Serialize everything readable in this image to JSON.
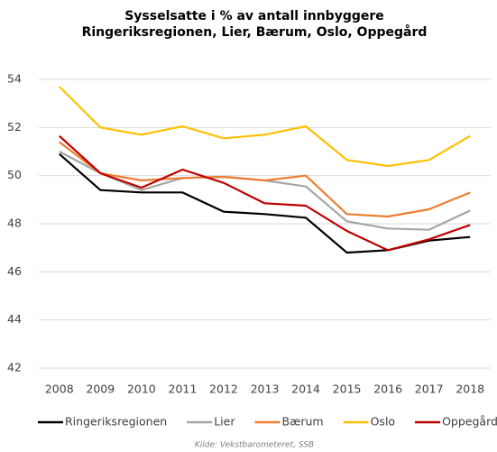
{
  "chart_data": {
    "type": "line",
    "title": "Sysselsatte i % av antall innbyggere",
    "subtitle": "Ringeriksregionen, Lier, Bærum, Oslo, Oppegård",
    "source": "Kilde: Vekstbarometeret, SSB",
    "categories": [
      "2008",
      "2009",
      "2010",
      "2011",
      "2012",
      "2013",
      "2014",
      "2015",
      "2016",
      "2017",
      "2018"
    ],
    "series": [
      {
        "name": "Ringeriksregionen",
        "color": "#000000",
        "values": [
          50.9,
          49.4,
          49.3,
          49.3,
          48.5,
          48.4,
          48.25,
          46.8,
          46.9,
          47.3,
          47.45
        ]
      },
      {
        "name": "Lier",
        "color": "#a5a5a5",
        "values": [
          51.0,
          50.1,
          49.4,
          49.9,
          49.95,
          49.8,
          49.55,
          48.1,
          47.8,
          47.75,
          48.55
        ]
      },
      {
        "name": "Bærum",
        "color": "#ed7d31",
        "values": [
          51.4,
          50.1,
          49.8,
          49.9,
          49.95,
          49.8,
          50.0,
          48.4,
          48.3,
          48.6,
          49.3
        ]
      },
      {
        "name": "Oslo",
        "color": "#ffc000",
        "values": [
          53.7,
          52.0,
          51.7,
          52.05,
          51.55,
          51.7,
          52.05,
          50.65,
          50.4,
          50.65,
          51.65
        ]
      },
      {
        "name": "Oppegård",
        "color": "#c00000",
        "values": [
          51.65,
          50.1,
          49.5,
          50.25,
          49.7,
          48.85,
          48.75,
          47.7,
          46.9,
          47.35,
          47.95
        ]
      }
    ],
    "ylim": [
      42,
      54
    ],
    "yticks": [
      42,
      44,
      46,
      48,
      50,
      52,
      54
    ],
    "grid": true,
    "legend": "bottom"
  }
}
